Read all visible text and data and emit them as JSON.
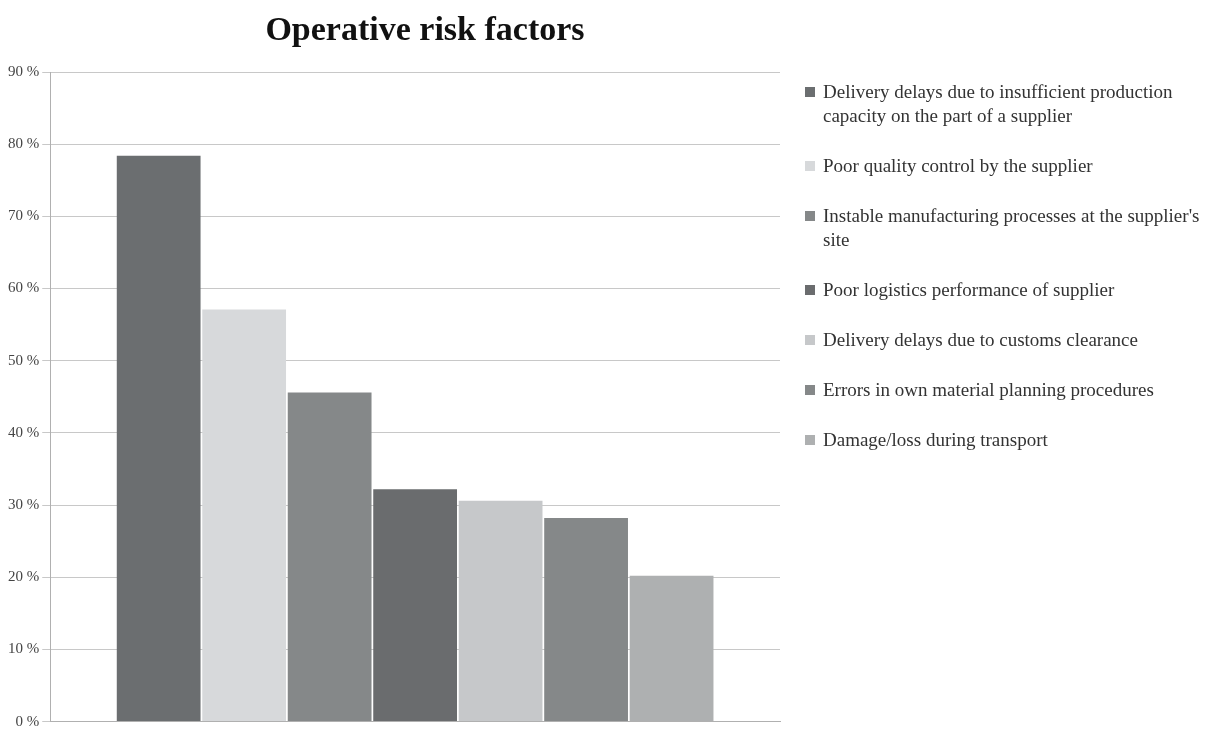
{
  "chart_data": {
    "type": "bar",
    "title": "Operative risk factors",
    "categories": [
      null
    ],
    "series": [
      {
        "name": "Delivery delays due to insufficient production capacity on the part of a supplier",
        "color": "#6b6e70",
        "values": [
          78.4
        ]
      },
      {
        "name": "Poor quality control by the supplier",
        "color": "#d7d9db",
        "values": [
          57.1
        ]
      },
      {
        "name": "Instable manufacturing processes at the supplier's site",
        "color": "#858889",
        "values": [
          45.6
        ]
      },
      {
        "name": "Poor logistics performance of supplier",
        "color": "#6a6c6e",
        "values": [
          32.2
        ]
      },
      {
        "name": "Delivery delays due to customs clearance",
        "color": "#c6c8ca",
        "values": [
          30.6
        ]
      },
      {
        "name": "Errors in own material planning procedures",
        "color": "#858889",
        "values": [
          28.2
        ]
      },
      {
        "name": "Damage/loss during transport",
        "color": "#aeb0b1",
        "values": [
          20.2
        ]
      }
    ],
    "ylim": [
      0,
      90
    ],
    "yticks": [
      {
        "value": 0,
        "label": "0 %"
      },
      {
        "value": 10,
        "label": "10 %"
      },
      {
        "value": 20,
        "label": "20 %"
      },
      {
        "value": 30,
        "label": "30 %"
      },
      {
        "value": 40,
        "label": "40 %"
      },
      {
        "value": 50,
        "label": "50 %"
      },
      {
        "value": 60,
        "label": "60 %"
      },
      {
        "value": 70,
        "label": "70 %"
      },
      {
        "value": 80,
        "label": "80 %"
      },
      {
        "value": 90,
        "label": "90 %"
      }
    ],
    "grid": "y",
    "legend": "right"
  }
}
